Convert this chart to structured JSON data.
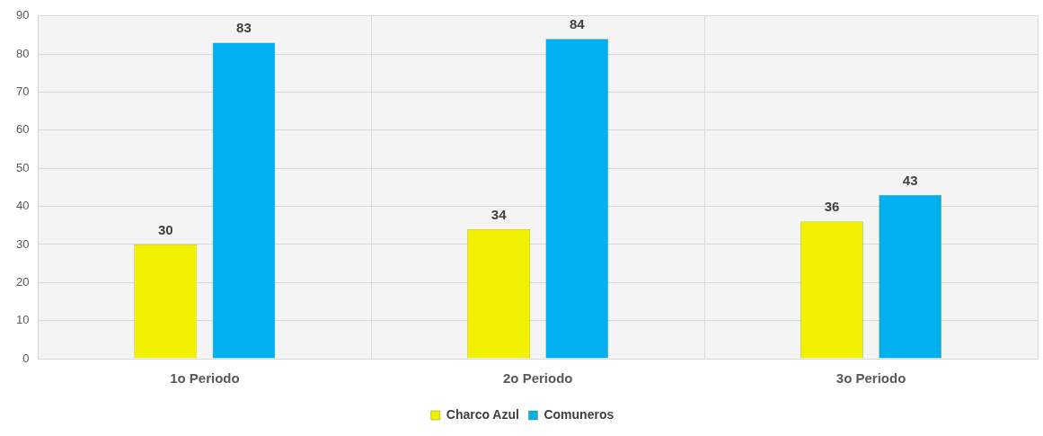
{
  "chart_data": {
    "type": "bar",
    "categories": [
      "1o Periodo",
      "2o Periodo",
      "3o Periodo"
    ],
    "series": [
      {
        "name": "Charco Azul",
        "color": "#f2f200",
        "values": [
          30,
          34,
          36
        ]
      },
      {
        "name": "Comuneros",
        "color": "#00b0f0",
        "values": [
          83,
          84,
          43
        ]
      }
    ],
    "ylim": [
      0,
      90
    ],
    "yticks": [
      0,
      10,
      20,
      30,
      40,
      50,
      60,
      70,
      80,
      90
    ],
    "grid": true,
    "legend": "bottom",
    "data_labels": true
  }
}
